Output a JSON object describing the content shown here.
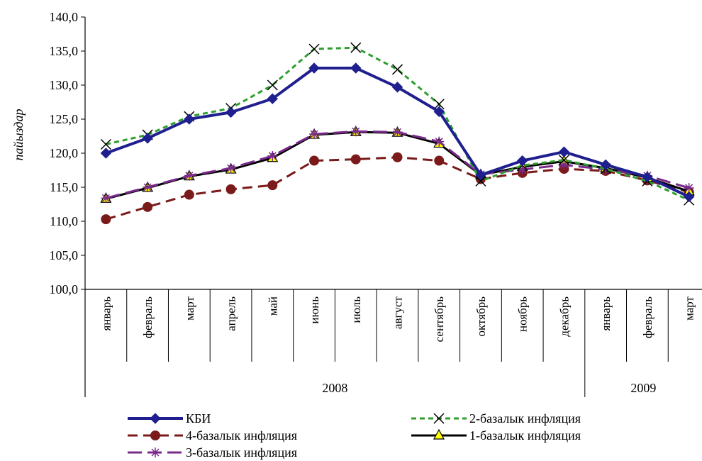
{
  "chart_data": {
    "type": "line",
    "ylabel": "пайыздар",
    "ylim": [
      100,
      140
    ],
    "ytick_step": 5,
    "grid": false,
    "legend_position": "bottom",
    "categories": [
      "январь",
      "февраль",
      "март",
      "апрель",
      "май",
      "июнь",
      "июль",
      "август",
      "сентябрь",
      "октябрь",
      "ноябрь",
      "декабрь",
      "январь",
      "февраль",
      "март"
    ],
    "year_groups": [
      {
        "label": "2008",
        "start": 0,
        "end": 11
      },
      {
        "label": "2009",
        "start": 12,
        "end": 14
      }
    ],
    "series": [
      {
        "name": "КБИ",
        "color": "#1f1f8f",
        "dash": "solid",
        "marker": "diamond",
        "values": [
          120.0,
          122.2,
          125.0,
          126.0,
          128.0,
          132.5,
          132.5,
          129.7,
          126.1,
          116.8,
          118.9,
          120.2,
          118.3,
          116.5,
          113.6
        ]
      },
      {
        "name": "2-базалык инфляция",
        "color": "#2e9e2e",
        "dash": "dotted",
        "marker": "x",
        "values": [
          121.3,
          122.7,
          125.4,
          126.6,
          130.0,
          135.3,
          135.5,
          132.3,
          127.2,
          115.9,
          118.2,
          119.0,
          117.7,
          115.9,
          113.1
        ]
      },
      {
        "name": "4-базалык инфляция",
        "color": "#7a1a1a",
        "dash": "dashed",
        "marker": "circle",
        "values": [
          110.3,
          112.1,
          113.9,
          114.7,
          115.3,
          118.9,
          119.1,
          119.4,
          118.9,
          116.2,
          117.1,
          117.7,
          117.4,
          116.0,
          114.3
        ]
      },
      {
        "name": "1-базалык инфляция",
        "color": "#000000",
        "dash": "solid",
        "marker": "triangle",
        "values": [
          113.3,
          114.9,
          116.6,
          117.6,
          119.3,
          122.7,
          123.1,
          123.0,
          121.4,
          116.8,
          118.0,
          118.8,
          117.8,
          116.4,
          114.4
        ]
      },
      {
        "name": "3-базалык инфляция",
        "color": "#7a2a8a",
        "dash": "longdash",
        "marker": "star",
        "values": [
          113.4,
          115.0,
          116.7,
          117.8,
          119.6,
          122.8,
          123.2,
          123.1,
          121.7,
          116.9,
          117.6,
          118.3,
          117.6,
          116.7,
          114.9
        ]
      }
    ]
  }
}
